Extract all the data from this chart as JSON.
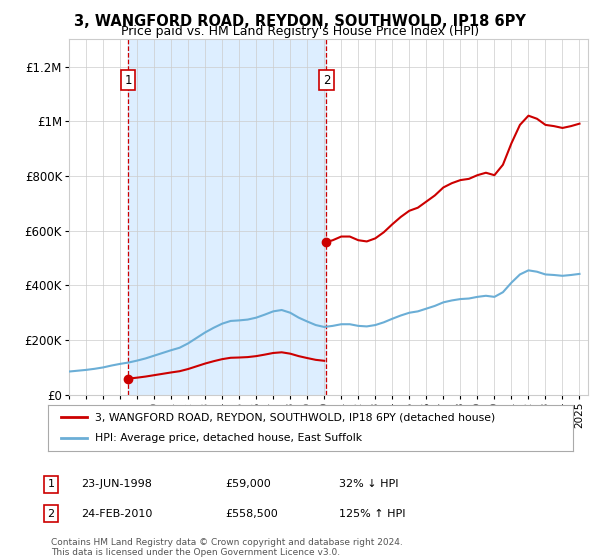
{
  "title1": "3, WANGFORD ROAD, REYDON, SOUTHWOLD, IP18 6PY",
  "title2": "Price paid vs. HM Land Registry's House Price Index (HPI)",
  "legend_line1": "3, WANGFORD ROAD, REYDON, SOUTHWOLD, IP18 6PY (detached house)",
  "legend_line2": "HPI: Average price, detached house, East Suffolk",
  "transaction1_date": "23-JUN-1998",
  "transaction1_price": "£59,000",
  "transaction1_hpi": "32% ↓ HPI",
  "transaction2_date": "24-FEB-2010",
  "transaction2_price": "£558,500",
  "transaction2_hpi": "125% ↑ HPI",
  "footer": "Contains HM Land Registry data © Crown copyright and database right 2024.\nThis data is licensed under the Open Government Licence v3.0.",
  "hpi_color": "#6baed6",
  "price_color": "#cc0000",
  "dashed_line_color": "#cc0000",
  "shaded_region_color": "#ddeeff",
  "background_color": "#ffffff",
  "ylim": [
    0,
    1300000
  ],
  "xlim_start": 1995.0,
  "xlim_end": 2025.5,
  "transaction1_x": 1998.47,
  "transaction1_y": 59000,
  "transaction2_x": 2010.13,
  "transaction2_y": 558500
}
